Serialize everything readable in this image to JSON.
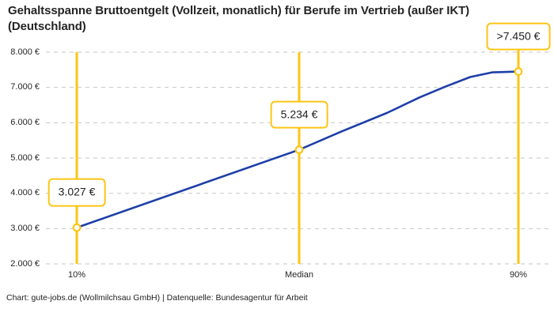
{
  "title": {
    "line1": "Gehaltsspanne Bruttoentgelt (Vollzeit, monatlich) für Berufe im Vertrieb (außer IKT)",
    "line2": "(Deutschland)"
  },
  "footer": "Chart: gute-jobs.de (Wollmilchsau GmbH) | Datenquelle: Bundesagentur für Arbeit",
  "colors": {
    "accent_yellow": "#fdc513",
    "line_blue": "#1e3fa8",
    "grid_gray": "#c6c6c6",
    "text_dark": "#252525",
    "tick_text": "#262626"
  },
  "chart_data": {
    "type": "line",
    "title": "Gehaltsspanne Bruttoentgelt (Vollzeit, monatlich) für Berufe im Vertrieb (außer IKT) (Deutschland)",
    "xlabel": "",
    "ylabel": "",
    "ylim": [
      2000,
      8000
    ],
    "grid": "horizontal-dashed",
    "legend": "none",
    "unit": "€",
    "y_ticks": [
      8000,
      7000,
      6000,
      5000,
      4000,
      3000,
      2000
    ],
    "y_tick_labels": [
      "8.000 €",
      "7.000 €",
      "6.000 €",
      "5.000 €",
      "4.000 €",
      "3.000 €",
      "2.000 €"
    ],
    "x_tick_labels": [
      "10%",
      "Median",
      "90%"
    ],
    "points": [
      {
        "percentile": "10%",
        "value": 3027,
        "label": "3.027 €"
      },
      {
        "percentile": "Median",
        "value": 5234,
        "label": "5.234 €"
      },
      {
        "percentile": "90%",
        "value": 7450,
        "label": ">7.450 €",
        "capped": true
      }
    ]
  }
}
